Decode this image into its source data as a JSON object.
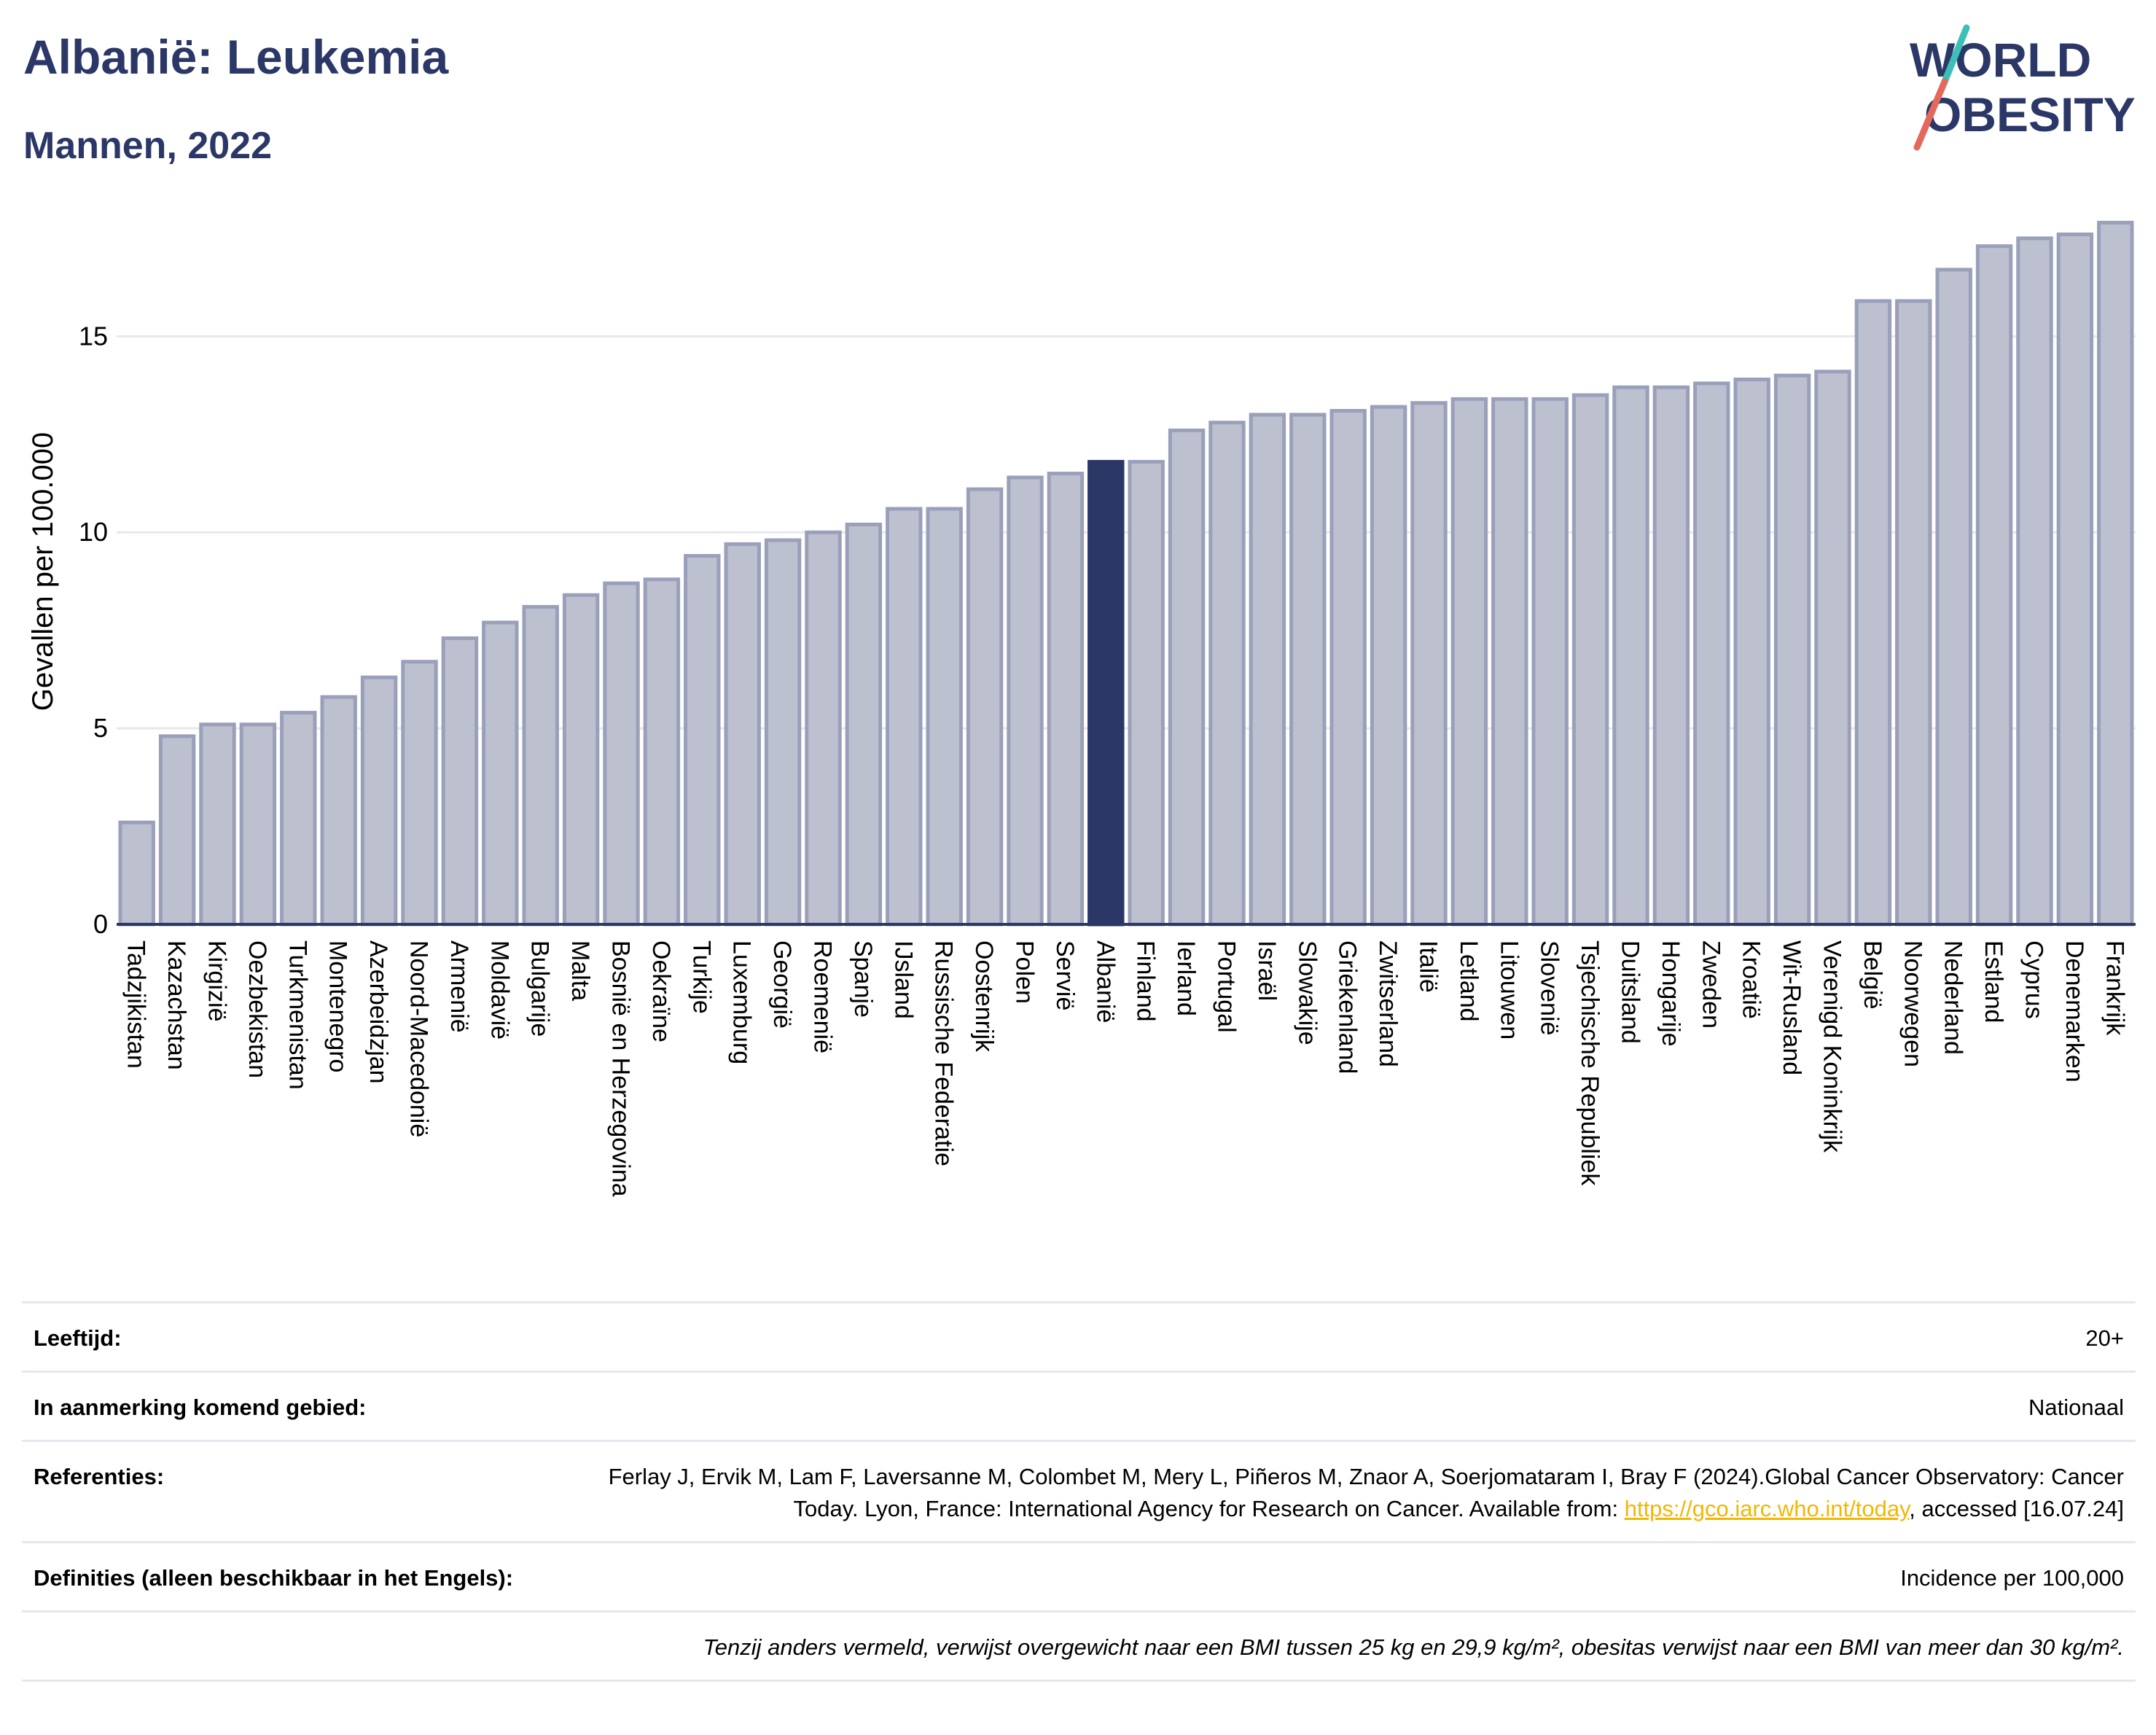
{
  "title": "Albanië: Leukemia",
  "subtitle": "Mannen, 2022",
  "logo": {
    "line1": "WORLD",
    "line2": "OBESITY",
    "accent_colors": [
      "#3bbfb6",
      "#e4685c"
    ]
  },
  "colors": {
    "highlight": "#2b3766",
    "bar": "#bcc0cf",
    "bar_stroke": "#9aa0ba",
    "axis": "#2b3766",
    "grid": "#e6e8ee"
  },
  "chart_data": {
    "type": "bar",
    "ylabel": "Gevallen per 100.000",
    "xlabel": "",
    "ylim": [
      0,
      18
    ],
    "yticks": [
      0,
      5,
      10,
      15
    ],
    "highlight": "Albanië",
    "categories": [
      "Tadzjikistan",
      "Kazachstan",
      "Kirgizië",
      "Oezbekistan",
      "Turkmenistan",
      "Montenegro",
      "Azerbeidzjan",
      "Noord-Macedonië",
      "Armenië",
      "Moldavië",
      "Bulgarije",
      "Malta",
      "Bosnië en Herzegovina",
      "Oekraïne",
      "Turkije",
      "Luxemburg",
      "Georgië",
      "Roemenië",
      "Spanje",
      "IJsland",
      "Russische Federatie",
      "Oostenrijk",
      "Polen",
      "Servië",
      "Albanië",
      "Finland",
      "Ierland",
      "Portugal",
      "Israël",
      "Slowakije",
      "Griekenland",
      "Zwitserland",
      "Italië",
      "Letland",
      "Litouwen",
      "Slovenië",
      "Tsjechische Republiek",
      "Duitsland",
      "Hongarije",
      "Zweden",
      "Kroatië",
      "Wit-Rusland",
      "Verenigd Koninkrijk",
      "België",
      "Noorwegen",
      "Nederland",
      "Estland",
      "Cyprus",
      "Denemarken",
      "Frankrijk"
    ],
    "values": [
      2.6,
      4.8,
      5.1,
      5.1,
      5.4,
      5.8,
      6.3,
      6.7,
      7.3,
      7.7,
      8.1,
      8.4,
      8.7,
      8.8,
      9.4,
      9.7,
      9.8,
      10.0,
      10.2,
      10.6,
      10.6,
      11.1,
      11.4,
      11.5,
      11.8,
      11.8,
      12.6,
      12.8,
      13.0,
      13.0,
      13.1,
      13.2,
      13.3,
      13.4,
      13.4,
      13.4,
      13.5,
      13.7,
      13.7,
      13.8,
      13.9,
      14.0,
      14.1,
      15.9,
      15.9,
      16.7,
      17.3,
      17.5,
      17.6,
      17.9
    ]
  },
  "meta": {
    "age_label": "Leeftijd:",
    "age_value": "20+",
    "area_label": "In aanmerking komend gebied:",
    "area_value": "Nationaal",
    "ref_label": "Referenties:",
    "ref_text": "Ferlay J, Ervik M, Lam F, Laversanne M, Colombet M, Mery L, Piñeros M, Znaor A, Soerjomataram I, Bray F (2024).Global Cancer Observatory: Cancer Today. Lyon, France: International Agency for Research on Cancer. Available from: ",
    "ref_link": "https://gco.iarc.who.int/today",
    "ref_tail": ", accessed [16.07.24]",
    "def_label": "Definities (alleen beschikbaar in het Engels):",
    "def_value": "Incidence per 100,000",
    "note": "Tenzij anders vermeld, verwijst overgewicht naar een BMI tussen 25 kg en 29,9 kg/m², obesitas verwijst naar een BMI van meer dan 30 kg/m²."
  }
}
